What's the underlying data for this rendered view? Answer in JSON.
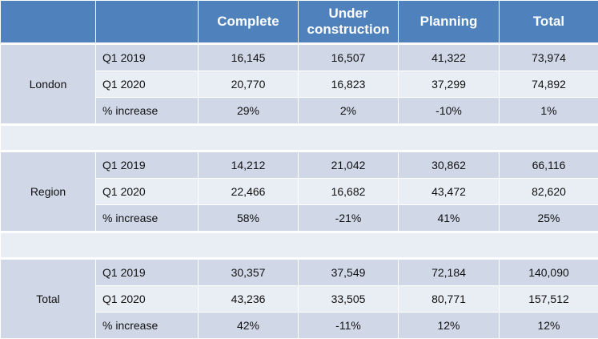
{
  "headers": [
    "",
    "",
    "Complete",
    "Under construction",
    "Planning",
    "Total"
  ],
  "groups": [
    {
      "name": "London",
      "rows": [
        {
          "label": "Q1 2019",
          "values": [
            "16,145",
            "16,507",
            "41,322",
            "73,974"
          ]
        },
        {
          "label": "Q1 2020",
          "values": [
            "20,770",
            "16,823",
            "37,299",
            "74,892"
          ]
        },
        {
          "label": "% increase",
          "values": [
            "29%",
            "2%",
            "-10%",
            "1%"
          ]
        }
      ]
    },
    {
      "name": "Region",
      "rows": [
        {
          "label": "Q1 2019",
          "values": [
            "14,212",
            "21,042",
            "30,862",
            "66,116"
          ]
        },
        {
          "label": "Q1 2020",
          "values": [
            "22,466",
            "16,682",
            "43,472",
            "82,620"
          ]
        },
        {
          "label": "% increase",
          "values": [
            "58%",
            "-21%",
            "41%",
            "25%"
          ]
        }
      ]
    },
    {
      "name": "Total",
      "rows": [
        {
          "label": "Q1 2019",
          "values": [
            "30,357",
            "37,549",
            "72,184",
            "140,090"
          ]
        },
        {
          "label": "Q1 2020",
          "values": [
            "43,236",
            "33,505",
            "80,771",
            "157,512"
          ]
        },
        {
          "label": "% increase",
          "values": [
            "42%",
            "-11%",
            "12%",
            "12%"
          ]
        }
      ]
    }
  ],
  "colors": {
    "header": "#4f81bd",
    "row_dark": "#d0d8e8",
    "row_light": "#e9edf4"
  }
}
